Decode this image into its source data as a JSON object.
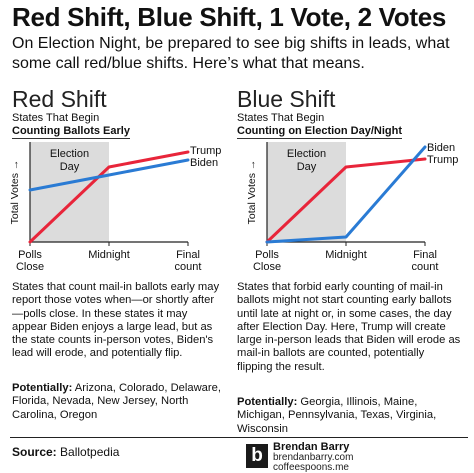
{
  "header": {
    "title": "Red Shift, Blue Shift, 1 Vote, 2 Votes",
    "subtitle": "On Election Night, be prepared to see big shifts in leads, what some call red/blue shifts. Here’s what that means."
  },
  "panels": [
    {
      "title": "Red Shift",
      "sub1": "States That Begin",
      "sub2": "Counting Ballots Early",
      "description": "States that count mail-in ballots early may report those votes when—or shortly after—polls close. In these states it may appear Biden enjoys a large lead, but as the state counts in-person votes, Biden's lead will erode, and potentially flip.",
      "potentially_label": "Potentially:",
      "potentially_states": "Arizona, Colorado, Delaware, Florida, Nevada, New Jersey, North Carolina, Oregon"
    },
    {
      "title": "Blue Shift",
      "sub1": "States That Begin",
      "sub2": "Counting on Election Day/Night",
      "description": "States that forbid early counting of mail-in ballots might not start counting early ballots until late at night or, in some cases, the day after Election Day. Here, Trump will create large in-person leads that Biden will erode as mail-in ballots are counted, potentially flipping the result.",
      "potentially_label": "Potentially:",
      "potentially_states": "Georgia, Illinois, Maine, Michigan, Pennsylvania, Texas, Virginia, Wisconsin"
    }
  ],
  "chart_data": [
    {
      "type": "line",
      "title": "Red Shift",
      "x_ticks": [
        "Polls Close",
        "Midnight",
        "Final count"
      ],
      "x": [
        0,
        1,
        2
      ],
      "ylabel": "Total Votes →",
      "ylim": [
        0,
        100
      ],
      "shaded_region": {
        "label": "Election Day",
        "from": 0,
        "to": 1
      },
      "series": [
        {
          "name": "Trump",
          "color": "#e8253a",
          "values": [
            0,
            75,
            90
          ]
        },
        {
          "name": "Biden",
          "color": "#2a7bd4",
          "values": [
            52,
            67,
            82
          ]
        }
      ]
    },
    {
      "type": "line",
      "title": "Blue Shift",
      "x_ticks": [
        "Polls Close",
        "Midnight",
        "Final count"
      ],
      "x": [
        0,
        1,
        2
      ],
      "ylabel": "Total Votes →",
      "ylim": [
        0,
        100
      ],
      "shaded_region": {
        "label": "Election Day",
        "from": 0,
        "to": 1
      },
      "series": [
        {
          "name": "Trump",
          "color": "#e8253a",
          "values": [
            0,
            75,
            83
          ]
        },
        {
          "name": "Biden",
          "color": "#2a7bd4",
          "values": [
            0,
            5,
            95
          ]
        }
      ]
    }
  ],
  "footer": {
    "source_label": "Source:",
    "source_value": "Ballotpedia",
    "brand_logo": "b",
    "brand_name": "Brendan Barry",
    "brand_url1": "brendanbarry.com",
    "brand_url2": "coffeespoons.me"
  }
}
